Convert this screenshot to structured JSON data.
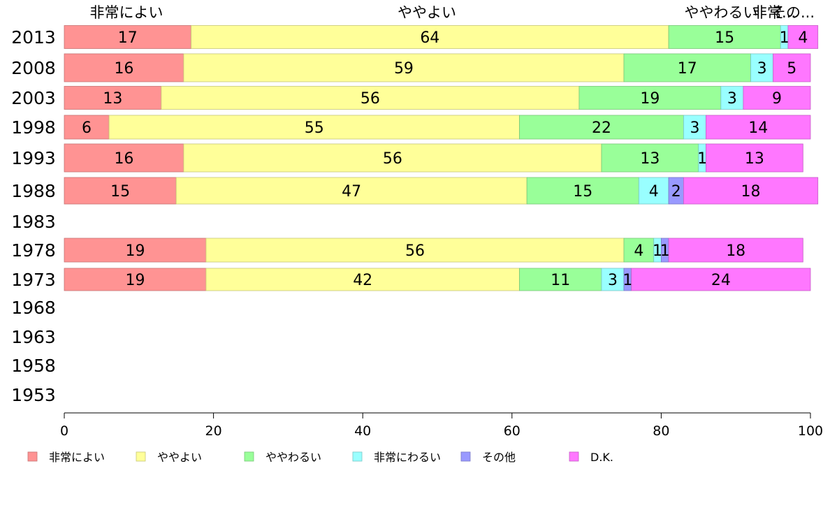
{
  "chart_data": {
    "type": "bar",
    "orientation": "horizontal",
    "stacked": true,
    "categories": [
      "2013",
      "2008",
      "2003",
      "1998",
      "1993",
      "1988",
      "1983",
      "1978",
      "1973",
      "1968",
      "1963",
      "1958",
      "1953"
    ],
    "series": [
      {
        "name": "非常によい",
        "color": "#ff9393",
        "values": [
          17,
          16,
          13,
          6,
          16,
          15,
          null,
          19,
          19,
          null,
          null,
          null,
          null
        ],
        "labels": [
          "17",
          "16",
          "13",
          "6",
          "16",
          "15",
          null,
          "19",
          "19",
          null,
          null,
          null,
          null
        ]
      },
      {
        "name": "ややよい",
        "color": "#ffff99",
        "values": [
          64,
          59,
          56,
          55,
          56,
          47,
          null,
          56,
          42,
          null,
          null,
          null,
          null
        ],
        "labels": [
          "64",
          "59",
          "56",
          "55",
          "56",
          "47",
          null,
          "56",
          "42",
          null,
          null,
          null,
          null
        ]
      },
      {
        "name": "ややわるい",
        "color": "#99ff99",
        "values": [
          15,
          17,
          19,
          22,
          13,
          15,
          null,
          4,
          11,
          null,
          null,
          null,
          null
        ],
        "labels": [
          "15",
          "17",
          "19",
          "22",
          "13",
          "15",
          null,
          "4",
          "11",
          null,
          null,
          null,
          null
        ]
      },
      {
        "name": "非常にわるい",
        "color": "#99ffff",
        "values": [
          1,
          3,
          3,
          3,
          1,
          4,
          null,
          1,
          3,
          null,
          null,
          null,
          null
        ],
        "labels": [
          "1",
          "3",
          "3",
          "3",
          "1",
          "4",
          null,
          "1",
          "3",
          null,
          null,
          null,
          null
        ]
      },
      {
        "name": "その他",
        "color": "#9999ff",
        "values": [
          0,
          0,
          0,
          0,
          0,
          2,
          null,
          1,
          1,
          null,
          null,
          null,
          null
        ],
        "labels": [
          null,
          null,
          null,
          null,
          null,
          "2",
          null,
          "1",
          "1",
          null,
          null,
          null,
          null
        ]
      },
      {
        "name": "D.K.",
        "color": "#ff77ff",
        "values": [
          4,
          5,
          9,
          14,
          13,
          18,
          null,
          18,
          24,
          null,
          null,
          null,
          null
        ],
        "labels": [
          "4",
          "5",
          "9",
          "14",
          "13",
          "18",
          null,
          "18",
          "24",
          null,
          null,
          null,
          null
        ]
      }
    ],
    "top_labels": [
      "非常によい",
      "ややよい",
      "ややわるい",
      "非常...",
      "その..."
    ],
    "x_ticks": [
      "0",
      "20",
      "40",
      "60",
      "80",
      "100"
    ],
    "xlim": [
      0,
      100
    ],
    "legend_position": "bottom-left"
  }
}
